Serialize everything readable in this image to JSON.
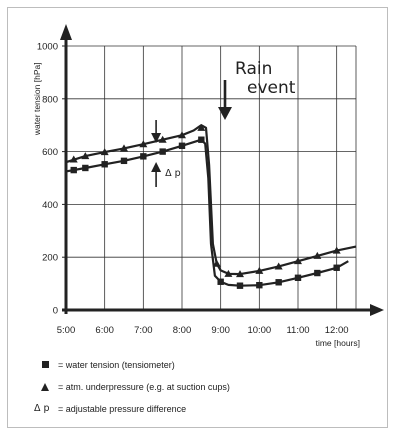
{
  "chart_data": {
    "type": "line",
    "ylabel": "water tension [hPa]",
    "xlabel": "time [hours]",
    "y_ticks": [
      "0",
      "200",
      "400",
      "600",
      "800",
      "1000"
    ],
    "x_ticks": [
      "5:00",
      "6:00",
      "7:00",
      "8:00",
      "9:00",
      "10:00",
      "11:00",
      "12:00"
    ],
    "ylim": [
      0,
      1000
    ],
    "xlim": [
      5.0,
      12.5
    ],
    "grid": true,
    "series": [
      {
        "name": "atm. underpressure",
        "marker": "triangle",
        "x": [
          5.2,
          5.5,
          6.0,
          6.5,
          7.0,
          7.5,
          8.0,
          8.5,
          8.9,
          9.2,
          9.5,
          10.0,
          10.5,
          11.0,
          11.5,
          12.0
        ],
        "values": [
          570,
          583,
          598,
          612,
          628,
          645,
          662,
          690,
          175,
          137,
          136,
          148,
          165,
          185,
          205,
          225
        ],
        "line_x": [
          5.0,
          5.5,
          6.0,
          6.5,
          7.0,
          7.5,
          8.0,
          8.3,
          8.5,
          8.62,
          8.7,
          8.8,
          8.9,
          9.0,
          9.2,
          9.5,
          10.0,
          10.5,
          11.0,
          11.5,
          12.0,
          12.5
        ],
        "line_y": [
          560,
          583,
          598,
          612,
          628,
          645,
          662,
          680,
          700,
          690,
          550,
          250,
          175,
          150,
          137,
          136,
          148,
          165,
          185,
          205,
          225,
          240
        ]
      },
      {
        "name": "water tension (tensiometer)",
        "marker": "square",
        "x": [
          5.2,
          5.5,
          6.0,
          6.5,
          7.0,
          7.5,
          8.0,
          8.5,
          9.0,
          9.5,
          10.0,
          10.5,
          11.0,
          11.5,
          12.0
        ],
        "values": [
          530,
          538,
          552,
          565,
          582,
          600,
          622,
          645,
          107,
          92,
          94,
          105,
          122,
          140,
          160
        ],
        "line_x": [
          5.0,
          5.5,
          6.0,
          6.5,
          7.0,
          7.5,
          8.0,
          8.5,
          8.6,
          8.68,
          8.75,
          8.85,
          9.0,
          9.2,
          9.5,
          10.0,
          10.5,
          11.0,
          11.5,
          12.0,
          12.3
        ],
        "line_y": [
          525,
          538,
          552,
          565,
          582,
          600,
          622,
          645,
          630,
          500,
          250,
          130,
          107,
          95,
          92,
          94,
          105,
          122,
          140,
          160,
          185
        ]
      }
    ],
    "annotations": {
      "rain_event": "Rain\nevent",
      "delta_p": "Δ p"
    }
  },
  "legend": {
    "items": [
      {
        "symbol": "square",
        "text": "= water tension (tensiometer)"
      },
      {
        "symbol": "triangle",
        "text": "= atm. underpressure (e.g. at suction cups)"
      },
      {
        "symbol": "delta-p",
        "symbol_text": "Δ p",
        "text": "= adjustable pressure difference"
      }
    ]
  }
}
